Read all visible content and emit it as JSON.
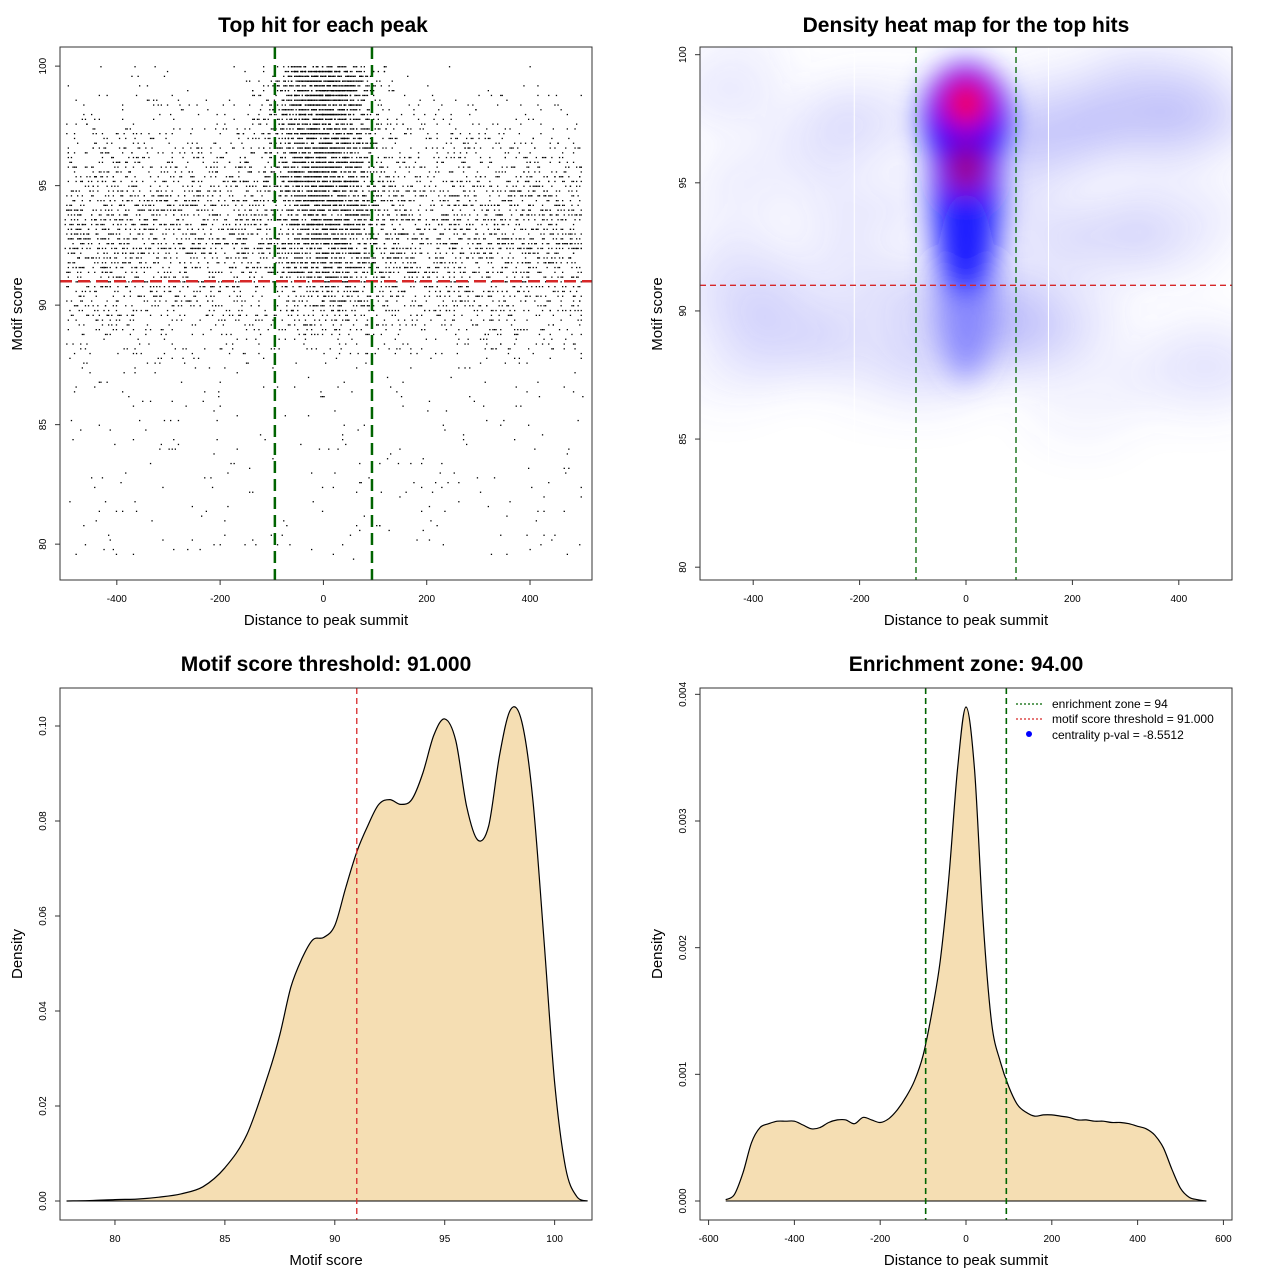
{
  "colors": {
    "threshold_red": "#d62728",
    "zone_green": "#006400",
    "fill_wheat": "#f5deb3",
    "heat_blue": "#0000ff",
    "heat_red": "#ff0000"
  },
  "chart_data": [
    {
      "type": "scatter",
      "title": "Top hit for each peak",
      "xlabel": "Distance to peak summit",
      "ylabel": "Motif score",
      "xlim": [
        -510,
        520
      ],
      "ylim": [
        78.5,
        100.8
      ],
      "xticks": [
        "-400",
        "-200",
        "0",
        "200",
        "400"
      ],
      "xtick_values": [
        -400,
        -200,
        0,
        200,
        400
      ],
      "yticks": [
        "80",
        "85",
        "90",
        "95",
        "100"
      ],
      "ytick_values": [
        80,
        85,
        90,
        95,
        100
      ],
      "grid": false,
      "hlines": [
        {
          "value": 91,
          "color": "#d62728",
          "style": "dashed"
        }
      ],
      "vlines": [
        {
          "value": -94,
          "color": "#006400",
          "style": "dashed"
        },
        {
          "value": 94,
          "color": "#006400",
          "style": "dashed"
        }
      ],
      "points": {
        "count": 8000,
        "x_range": [
          -500,
          500
        ],
        "y_range": [
          79.4,
          100
        ],
        "central_fraction": 0.35,
        "central_sd": 50,
        "center_y_mode": 97
      }
    },
    {
      "type": "heatmap",
      "title": "Density heat map for the top hits",
      "xlabel": "Distance to peak summit",
      "ylabel": "Motif score",
      "xlim": [
        -500,
        500
      ],
      "ylim": [
        79.5,
        100.3
      ],
      "xticks": [
        "-400",
        "-200",
        "0",
        "200",
        "400"
      ],
      "xtick_values": [
        -400,
        -200,
        0,
        200,
        400
      ],
      "yticks": [
        "80",
        "85",
        "90",
        "95",
        "100"
      ],
      "ytick_values": [
        80,
        85,
        90,
        95,
        100
      ],
      "grid": false,
      "hlines": [
        {
          "value": 91,
          "color": "#d62728",
          "style": "dashed"
        }
      ],
      "vlines": [
        {
          "value": -94,
          "color": "#006400",
          "style": "dashed"
        },
        {
          "value": 94,
          "color": "#006400",
          "style": "dashed"
        }
      ],
      "hotspots": [
        {
          "x": 0,
          "y": 98.2,
          "intensity": "peak"
        },
        {
          "x": 0,
          "y": 95.5,
          "intensity": "high"
        },
        {
          "x": 0,
          "y": 92.5,
          "intensity": "medium"
        },
        {
          "x": 0,
          "y": 89.5,
          "intensity": "low"
        }
      ]
    },
    {
      "type": "area",
      "title": "Motif score threshold: 91.000",
      "xlabel": "Motif score",
      "ylabel": "Density",
      "xlim": [
        77.5,
        101.7
      ],
      "ylim": [
        -0.004,
        0.108
      ],
      "xticks": [
        "80",
        "85",
        "90",
        "95",
        "100"
      ],
      "xtick_values": [
        80,
        85,
        90,
        95,
        100
      ],
      "yticks": [
        "0.00",
        "0.02",
        "0.04",
        "0.06",
        "0.08",
        "0.10"
      ],
      "ytick_values": [
        0,
        0.02,
        0.04,
        0.06,
        0.08,
        0.1
      ],
      "grid": false,
      "vlines": [
        {
          "value": 91,
          "color": "#d62728",
          "style": "dashed"
        }
      ],
      "x": [
        77.8,
        79,
        80,
        81,
        82,
        83,
        84,
        85,
        86,
        87,
        87.5,
        88,
        88.5,
        89,
        89.5,
        90,
        90.5,
        91,
        91.5,
        92,
        92.5,
        93,
        93.5,
        94,
        94.5,
        95,
        95.5,
        96,
        96.5,
        97,
        97.5,
        98,
        98.5,
        99,
        99.5,
        100,
        100.5,
        101,
        101.5
      ],
      "y": [
        0,
        0.0001,
        0.0003,
        0.0004,
        0.0008,
        0.0015,
        0.003,
        0.007,
        0.014,
        0.027,
        0.035,
        0.045,
        0.051,
        0.055,
        0.0555,
        0.058,
        0.066,
        0.0735,
        0.079,
        0.0835,
        0.0845,
        0.0835,
        0.0845,
        0.09,
        0.098,
        0.1015,
        0.097,
        0.083,
        0.076,
        0.079,
        0.094,
        0.1035,
        0.101,
        0.085,
        0.056,
        0.025,
        0.007,
        0.001,
        0
      ]
    },
    {
      "type": "area",
      "title": "Enrichment zone: 94.00",
      "xlabel": "Distance to peak summit",
      "ylabel": "Density",
      "xlim": [
        -620,
        620
      ],
      "ylim": [
        -0.00015,
        0.00405
      ],
      "xticks": [
        "-600",
        "-400",
        "-200",
        "0",
        "200",
        "400",
        "600"
      ],
      "xtick_values": [
        -600,
        -400,
        -200,
        0,
        200,
        400,
        600
      ],
      "yticks": [
        "0.000",
        "0.001",
        "0.002",
        "0.003",
        "0.004"
      ],
      "ytick_values": [
        0,
        0.001,
        0.002,
        0.003,
        0.004
      ],
      "grid": false,
      "legend": "top-right",
      "vlines": [
        {
          "value": -94,
          "color": "#006400",
          "style": "dashed"
        },
        {
          "value": 94,
          "color": "#006400",
          "style": "dashed"
        }
      ],
      "legend_entries": [
        {
          "label": "enrichment zone = 94",
          "kind": "dotted-line",
          "color": "#006400"
        },
        {
          "label": "motif score threshold = 91.000",
          "kind": "dotted-line",
          "color": "#d62728"
        },
        {
          "label": "centrality p-val = -8.5512",
          "kind": "point",
          "color": "#0000ff"
        }
      ],
      "x": [
        -560,
        -540,
        -520,
        -500,
        -480,
        -460,
        -440,
        -420,
        -400,
        -380,
        -360,
        -340,
        -320,
        -300,
        -280,
        -260,
        -240,
        -220,
        -200,
        -180,
        -160,
        -140,
        -120,
        -100,
        -80,
        -60,
        -40,
        -20,
        0,
        20,
        40,
        60,
        80,
        100,
        120,
        140,
        160,
        180,
        200,
        220,
        240,
        260,
        280,
        300,
        320,
        340,
        360,
        380,
        400,
        420,
        440,
        460,
        480,
        500,
        520,
        540,
        560
      ],
      "y": [
        1e-05,
        5e-05,
        0.00022,
        0.00046,
        0.00058,
        0.00061,
        0.00063,
        0.00063,
        0.00063,
        0.0006,
        0.00057,
        0.00058,
        0.00062,
        0.00064,
        0.00064,
        0.00061,
        0.00066,
        0.00064,
        0.00062,
        0.00065,
        0.00072,
        0.00082,
        0.00095,
        0.00115,
        0.00148,
        0.0019,
        0.00255,
        0.0034,
        0.0039,
        0.0034,
        0.0022,
        0.0014,
        0.0011,
        0.0009,
        0.00076,
        0.0007,
        0.00067,
        0.00068,
        0.00068,
        0.00067,
        0.00066,
        0.00064,
        0.00064,
        0.00063,
        0.00063,
        0.00062,
        0.00062,
        0.00061,
        0.00059,
        0.00057,
        0.00052,
        0.00042,
        0.00025,
        0.0001,
        3e-05,
        1e-05,
        0
      ]
    }
  ]
}
